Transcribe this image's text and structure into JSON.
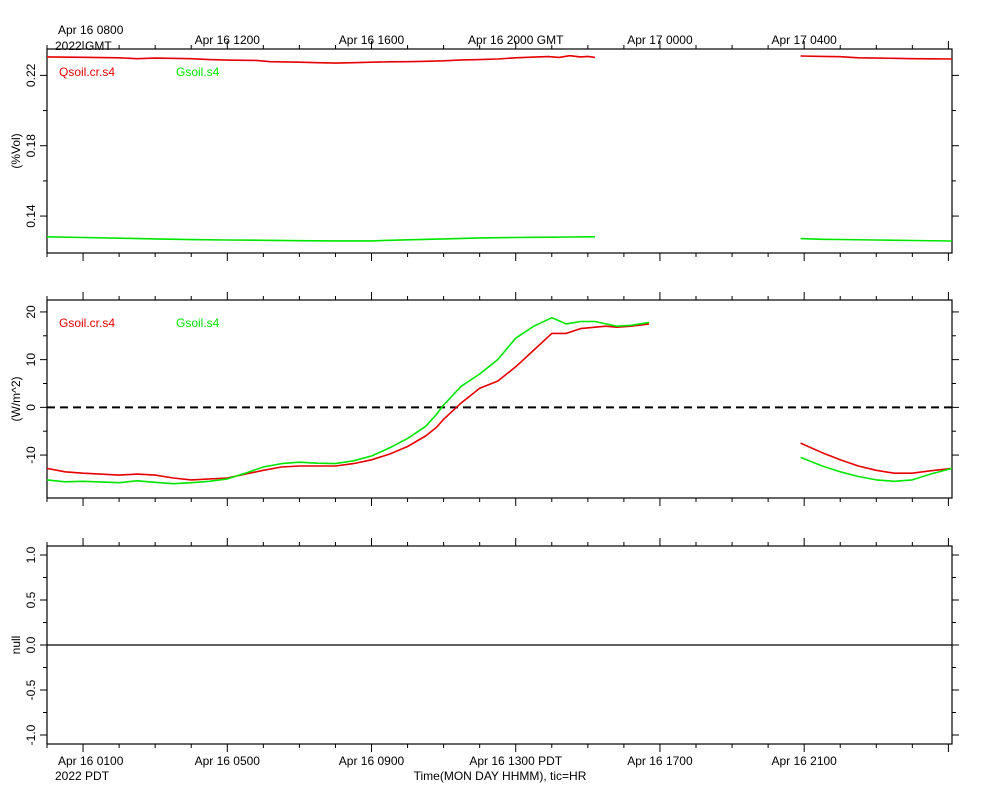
{
  "top_axis": {
    "first_label_line1": "Apr 16 0800",
    "first_label_line2": "2022 GMT",
    "tick_labels": [
      "Apr 16 1200",
      "Apr 16 1600",
      "Apr 16 2000 GMT",
      "Apr 17 0000",
      "Apr 17 0400"
    ]
  },
  "bottom_axis": {
    "first_label_line1": "Apr 16 0100",
    "first_label_line2": "2022 PDT",
    "tick_labels": [
      "Apr 16 0500",
      "Apr 16 0900",
      "Apr 16 1300 PDT",
      "Apr 16 1700",
      "Apr 16 2100"
    ],
    "title": "Time(MON DAY HHMM), tic=HR"
  },
  "colors": {
    "red": "#e60000",
    "green": "#00e600",
    "axis": "#000000"
  },
  "chart_data": [
    {
      "type": "line",
      "ylabel": "(%Vol)",
      "y_ticks": [
        0.14,
        0.18,
        0.22
      ],
      "y_tick_labels": [
        "0.14",
        "0.18",
        "0.22"
      ],
      "ylim": [
        0.119,
        0.235
      ],
      "x_unit": "hours after Apr 16 0000 PDT",
      "xlim": [
        0.0,
        25.1
      ],
      "grid": false,
      "series": [
        {
          "name": "Qsoil.cr.s4",
          "color": "#e60000",
          "segments": [
            [
              [
                0.0,
                0.2305
              ],
              [
                1.0,
                0.2303
              ],
              [
                2.0,
                0.23
              ],
              [
                2.5,
                0.2295
              ],
              [
                3.0,
                0.2298
              ],
              [
                4.0,
                0.2295
              ],
              [
                4.5,
                0.229
              ],
              [
                5.0,
                0.2287
              ],
              [
                5.8,
                0.2285
              ],
              [
                6.2,
                0.2278
              ],
              [
                7.0,
                0.2275
              ],
              [
                7.5,
                0.2272
              ],
              [
                8.0,
                0.227
              ],
              [
                8.5,
                0.2272
              ],
              [
                9.0,
                0.2275
              ],
              [
                9.5,
                0.2277
              ],
              [
                10.0,
                0.2278
              ],
              [
                10.5,
                0.228
              ],
              [
                11.0,
                0.2283
              ],
              [
                11.5,
                0.2288
              ],
              [
                12.0,
                0.229
              ],
              [
                12.5,
                0.2293
              ],
              [
                13.0,
                0.23
              ],
              [
                13.5,
                0.2304
              ],
              [
                13.9,
                0.2307
              ],
              [
                14.2,
                0.2302
              ],
              [
                14.5,
                0.2312
              ],
              [
                14.8,
                0.2305
              ],
              [
                15.0,
                0.2308
              ],
              [
                15.2,
                0.2302
              ]
            ],
            [
              [
                20.9,
                0.231
              ],
              [
                21.5,
                0.2308
              ],
              [
                22.0,
                0.2306
              ],
              [
                22.5,
                0.23
              ],
              [
                23.0,
                0.2298
              ],
              [
                23.5,
                0.2297
              ],
              [
                24.0,
                0.2295
              ],
              [
                24.5,
                0.2294
              ],
              [
                25.1,
                0.2293
              ]
            ]
          ]
        },
        {
          "name": "Gsoil.s4",
          "color": "#00e600",
          "segments": [
            [
              [
                0.0,
                0.1282
              ],
              [
                1.0,
                0.1278
              ],
              [
                2.0,
                0.1274
              ],
              [
                3.0,
                0.127
              ],
              [
                4.0,
                0.1266
              ],
              [
                5.0,
                0.1264
              ],
              [
                6.0,
                0.1262
              ],
              [
                7.0,
                0.126
              ],
              [
                8.0,
                0.1259
              ],
              [
                9.0,
                0.1259
              ],
              [
                9.5,
                0.1262
              ],
              [
                10.0,
                0.1265
              ],
              [
                11.0,
                0.127
              ],
              [
                11.5,
                0.1273
              ],
              [
                12.0,
                0.1276
              ],
              [
                12.5,
                0.1277
              ],
              [
                13.0,
                0.1278
              ],
              [
                13.5,
                0.1279
              ],
              [
                14.0,
                0.128
              ],
              [
                14.5,
                0.1281
              ],
              [
                15.0,
                0.1282
              ],
              [
                15.2,
                0.1282
              ]
            ],
            [
              [
                20.9,
                0.1272
              ],
              [
                21.5,
                0.1268
              ],
              [
                22.0,
                0.1267
              ],
              [
                23.0,
                0.1264
              ],
              [
                24.0,
                0.1261
              ],
              [
                25.1,
                0.1258
              ]
            ]
          ]
        }
      ]
    },
    {
      "type": "line",
      "ylabel": "(W/m^2)",
      "y_ticks": [
        -10,
        0,
        10,
        20
      ],
      "y_tick_labels": [
        "-10",
        "0",
        "10",
        "20"
      ],
      "ylim": [
        -19,
        22.5
      ],
      "x_unit": "hours after Apr 16 0000 PDT",
      "xlim": [
        0.0,
        25.1
      ],
      "zero_line": "dashed",
      "grid": false,
      "series": [
        {
          "name": "Gsoil.cr.s4",
          "color": "#e60000",
          "segments": [
            [
              [
                0.0,
                -12.8
              ],
              [
                0.5,
                -13.5
              ],
              [
                1.0,
                -13.8
              ],
              [
                2.0,
                -14.2
              ],
              [
                2.5,
                -14.0
              ],
              [
                3.0,
                -14.2
              ],
              [
                3.5,
                -14.8
              ],
              [
                4.0,
                -15.2
              ],
              [
                5.0,
                -14.8
              ],
              [
                5.5,
                -14.0
              ],
              [
                6.0,
                -13.2
              ],
              [
                6.5,
                -12.5
              ],
              [
                7.0,
                -12.3
              ],
              [
                8.0,
                -12.3
              ],
              [
                8.5,
                -11.8
              ],
              [
                9.0,
                -11.0
              ],
              [
                9.5,
                -9.8
              ],
              [
                10.0,
                -8.2
              ],
              [
                10.5,
                -6.0
              ],
              [
                10.8,
                -4.2
              ],
              [
                11.0,
                -2.5
              ],
              [
                11.5,
                1.0
              ],
              [
                12.0,
                4.0
              ],
              [
                12.5,
                5.5
              ],
              [
                13.0,
                8.5
              ],
              [
                13.5,
                12.0
              ],
              [
                14.0,
                15.5
              ],
              [
                14.4,
                15.5
              ],
              [
                14.8,
                16.5
              ],
              [
                15.2,
                16.8
              ],
              [
                15.5,
                17.0
              ],
              [
                15.8,
                16.8
              ],
              [
                16.2,
                17.0
              ],
              [
                16.7,
                17.5
              ]
            ],
            [
              [
                20.9,
                -7.5
              ],
              [
                21.5,
                -9.5
              ],
              [
                22.0,
                -11.0
              ],
              [
                22.5,
                -12.3
              ],
              [
                23.0,
                -13.2
              ],
              [
                23.5,
                -13.8
              ],
              [
                24.0,
                -13.8
              ],
              [
                24.5,
                -13.3
              ],
              [
                25.1,
                -12.8
              ]
            ]
          ]
        },
        {
          "name": "Gsoil.s4",
          "color": "#00e600",
          "segments": [
            [
              [
                0.0,
                -15.2
              ],
              [
                0.5,
                -15.6
              ],
              [
                1.0,
                -15.5
              ],
              [
                2.0,
                -15.8
              ],
              [
                2.5,
                -15.4
              ],
              [
                3.0,
                -15.7
              ],
              [
                3.5,
                -16.0
              ],
              [
                4.0,
                -15.8
              ],
              [
                4.5,
                -15.5
              ],
              [
                5.0,
                -15.0
              ],
              [
                5.5,
                -13.8
              ],
              [
                6.0,
                -12.5
              ],
              [
                6.5,
                -11.8
              ],
              [
                7.0,
                -11.5
              ],
              [
                7.5,
                -11.7
              ],
              [
                8.0,
                -11.8
              ],
              [
                8.5,
                -11.2
              ],
              [
                9.0,
                -10.2
              ],
              [
                9.5,
                -8.5
              ],
              [
                10.0,
                -6.5
              ],
              [
                10.5,
                -4.0
              ],
              [
                10.8,
                -1.5
              ],
              [
                11.0,
                0.5
              ],
              [
                11.5,
                4.5
              ],
              [
                12.0,
                7.0
              ],
              [
                12.5,
                10.0
              ],
              [
                13.0,
                14.5
              ],
              [
                13.5,
                17.0
              ],
              [
                14.0,
                18.8
              ],
              [
                14.4,
                17.5
              ],
              [
                14.8,
                18.0
              ],
              [
                15.2,
                18.0
              ],
              [
                15.5,
                17.5
              ],
              [
                15.8,
                17.0
              ],
              [
                16.2,
                17.2
              ],
              [
                16.7,
                17.8
              ]
            ],
            [
              [
                20.9,
                -10.5
              ],
              [
                21.5,
                -12.3
              ],
              [
                22.0,
                -13.5
              ],
              [
                22.5,
                -14.5
              ],
              [
                23.0,
                -15.2
              ],
              [
                23.5,
                -15.5
              ],
              [
                24.0,
                -15.2
              ],
              [
                24.5,
                -14.0
              ],
              [
                25.1,
                -12.8
              ]
            ]
          ]
        }
      ]
    },
    {
      "type": "line",
      "ylabel": "null",
      "y_ticks": [
        -1.0,
        -0.5,
        0.0,
        0.5,
        1.0
      ],
      "y_tick_labels": [
        "-1.0",
        "-0.5",
        "0.0",
        "0.5",
        "1.0"
      ],
      "ylim": [
        -1.1,
        1.1
      ],
      "x_unit": "hours after Apr 16 0000 PDT",
      "xlim": [
        0.0,
        25.1
      ],
      "zero_line": "solid",
      "grid": false,
      "series": []
    }
  ]
}
